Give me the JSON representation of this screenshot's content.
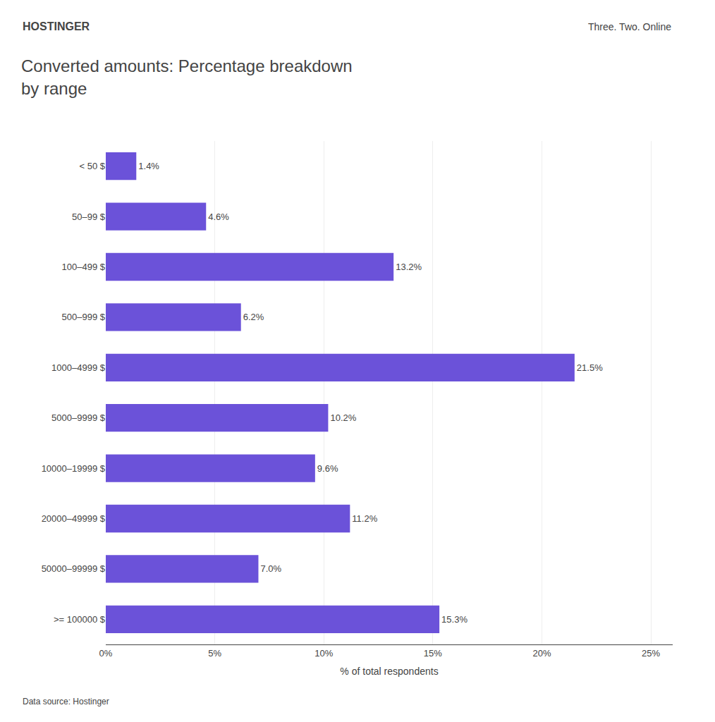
{
  "chart_data": {
    "type": "bar",
    "orientation": "horizontal",
    "title": "Converted amounts: Percentage breakdown\nby range",
    "xlabel": "% of total respondents",
    "annotations": [
      "HOSTINGER",
      "Three. Two. Online",
      "Data source: Hostinger"
    ],
    "categories": [
      "< 50 $",
      "50–99 $",
      "100–499 $",
      "500–999 $",
      "1000–4999 $",
      "5000–9999 $",
      "10000–19999 $",
      "20000–49999 $",
      "50000–99999 $",
      ">= 100000 $"
    ],
    "values": [
      1.4,
      4.6,
      13.2,
      6.2,
      21.5,
      10.2,
      9.6,
      11.2,
      7.0,
      15.3
    ],
    "value_labels": [
      "1.4%",
      "4.6%",
      "13.2%",
      "6.2%",
      "21.5%",
      "10.2%",
      "9.6%",
      "11.2%",
      "7.0%",
      "15.3%"
    ],
    "data_labels": true,
    "color": "#6B52D9",
    "xlim": [
      0,
      26
    ],
    "xticks": [
      {
        "value": 0,
        "label": "0%"
      },
      {
        "value": 5,
        "label": "5%"
      },
      {
        "value": 10,
        "label": "10%"
      },
      {
        "value": 15,
        "label": "15%"
      },
      {
        "value": 20,
        "label": "20%"
      },
      {
        "value": 25,
        "label": "25%"
      }
    ],
    "grid": true
  }
}
